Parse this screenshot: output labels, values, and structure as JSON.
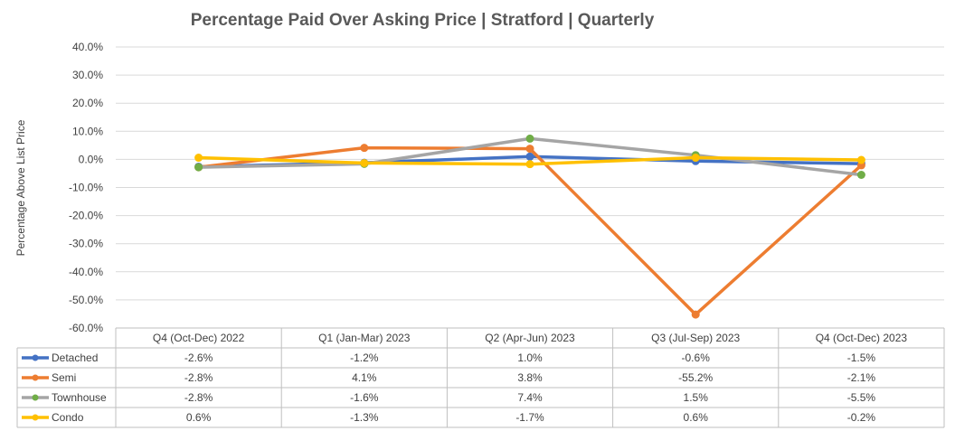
{
  "chart_data": {
    "type": "line",
    "title": "Percentage Paid Over Asking Price | Stratford |  Quarterly",
    "xlabel": "",
    "ylabel": "Percentage Above List Price",
    "ylim": [
      -60,
      40
    ],
    "yticks": [
      40,
      30,
      20,
      10,
      0,
      -10,
      -20,
      -30,
      -40,
      -50,
      -60
    ],
    "ytick_labels": [
      "40.0%",
      "30.0%",
      "20.0%",
      "10.0%",
      "0.0%",
      "-10.0%",
      "-20.0%",
      "-30.0%",
      "-40.0%",
      "-50.0%",
      "-60.0%"
    ],
    "grid": true,
    "legend": "data-table",
    "categories": [
      "Q4 (Oct-Dec) 2022",
      "Q1 (Jan-Mar) 2023",
      "Q2 (Apr-Jun) 2023",
      "Q3 (Jul-Sep) 2023",
      "Q4 (Oct-Dec) 2023"
    ],
    "series": [
      {
        "name": "Detached",
        "color": "#4472C4",
        "values": [
          -2.6,
          -1.2,
          1.0,
          -0.6,
          -1.5
        ],
        "labels": [
          "-2.6%",
          "-1.2%",
          "1.0%",
          "-0.6%",
          "-1.5%"
        ]
      },
      {
        "name": "Semi",
        "color": "#ED7D31",
        "values": [
          -2.8,
          4.1,
          3.8,
          -55.2,
          -2.1
        ],
        "labels": [
          "-2.8%",
          "4.1%",
          "3.8%",
          "-55.2%",
          "-2.1%"
        ]
      },
      {
        "name": "Townhouse",
        "color": "#A5A5A5",
        "marker_color": "#70AD47",
        "values": [
          -2.8,
          -1.6,
          7.4,
          1.5,
          -5.5
        ],
        "labels": [
          "-2.8%",
          "-1.6%",
          "7.4%",
          "1.5%",
          "-5.5%"
        ]
      },
      {
        "name": "Condo",
        "color": "#FFC000",
        "values": [
          0.6,
          -1.3,
          -1.7,
          0.6,
          -0.2
        ],
        "labels": [
          "0.6%",
          "-1.3%",
          "-1.7%",
          "0.6%",
          "-0.2%"
        ]
      }
    ]
  }
}
